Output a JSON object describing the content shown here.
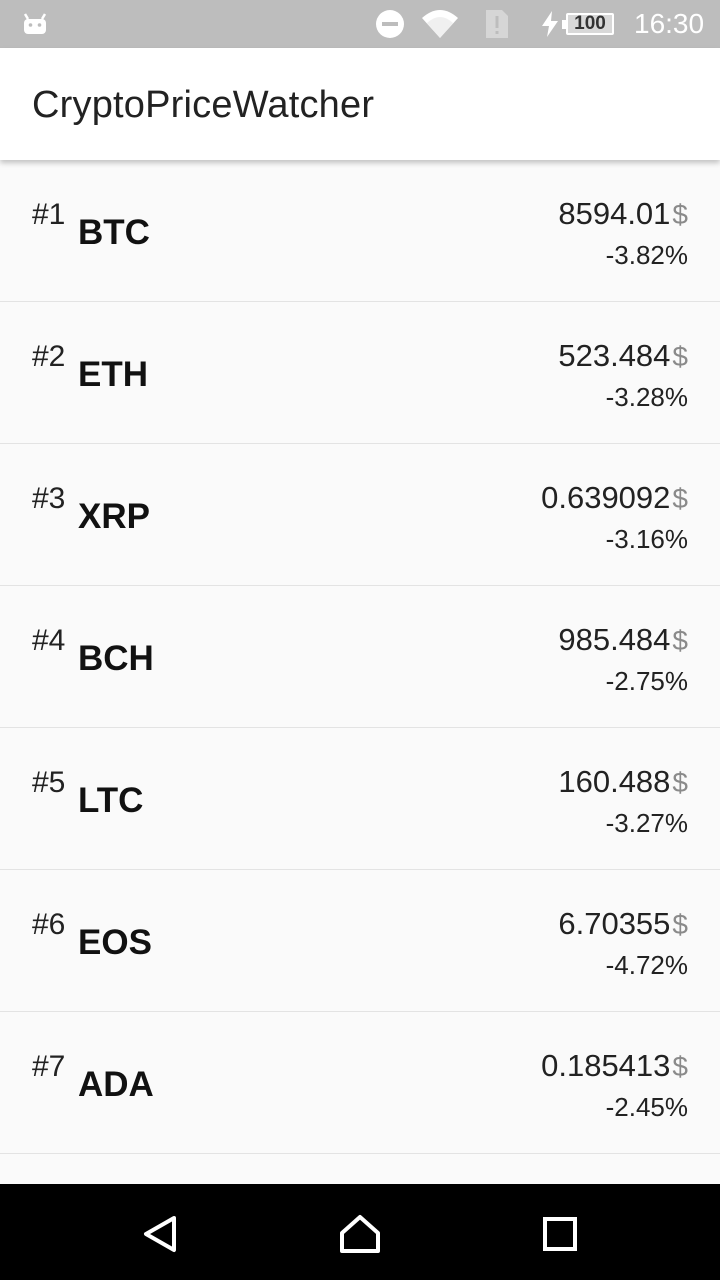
{
  "status_bar": {
    "icons": [
      "android-icon",
      "do-not-disturb-icon",
      "wifi-icon",
      "sim-alert-icon",
      "charging-bolt-icon"
    ],
    "battery": "100",
    "time": "16:30"
  },
  "app_bar": {
    "title": "CryptoPriceWatcher"
  },
  "currency_symbol": "$",
  "coins": [
    {
      "rank": "#1",
      "symbol": "BTC",
      "price": "8594.01",
      "change": "-3.82%"
    },
    {
      "rank": "#2",
      "symbol": "ETH",
      "price": "523.484",
      "change": "-3.28%"
    },
    {
      "rank": "#3",
      "symbol": "XRP",
      "price": "0.639092",
      "change": "-3.16%"
    },
    {
      "rank": "#4",
      "symbol": "BCH",
      "price": "985.484",
      "change": "-2.75%"
    },
    {
      "rank": "#5",
      "symbol": "LTC",
      "price": "160.488",
      "change": "-3.27%"
    },
    {
      "rank": "#6",
      "symbol": "EOS",
      "price": "6.70355",
      "change": "-4.72%"
    },
    {
      "rank": "#7",
      "symbol": "ADA",
      "price": "0.185413",
      "change": "-2.45%"
    }
  ],
  "nav_bar": {
    "icons": [
      "back-icon",
      "home-icon",
      "recents-icon"
    ]
  }
}
